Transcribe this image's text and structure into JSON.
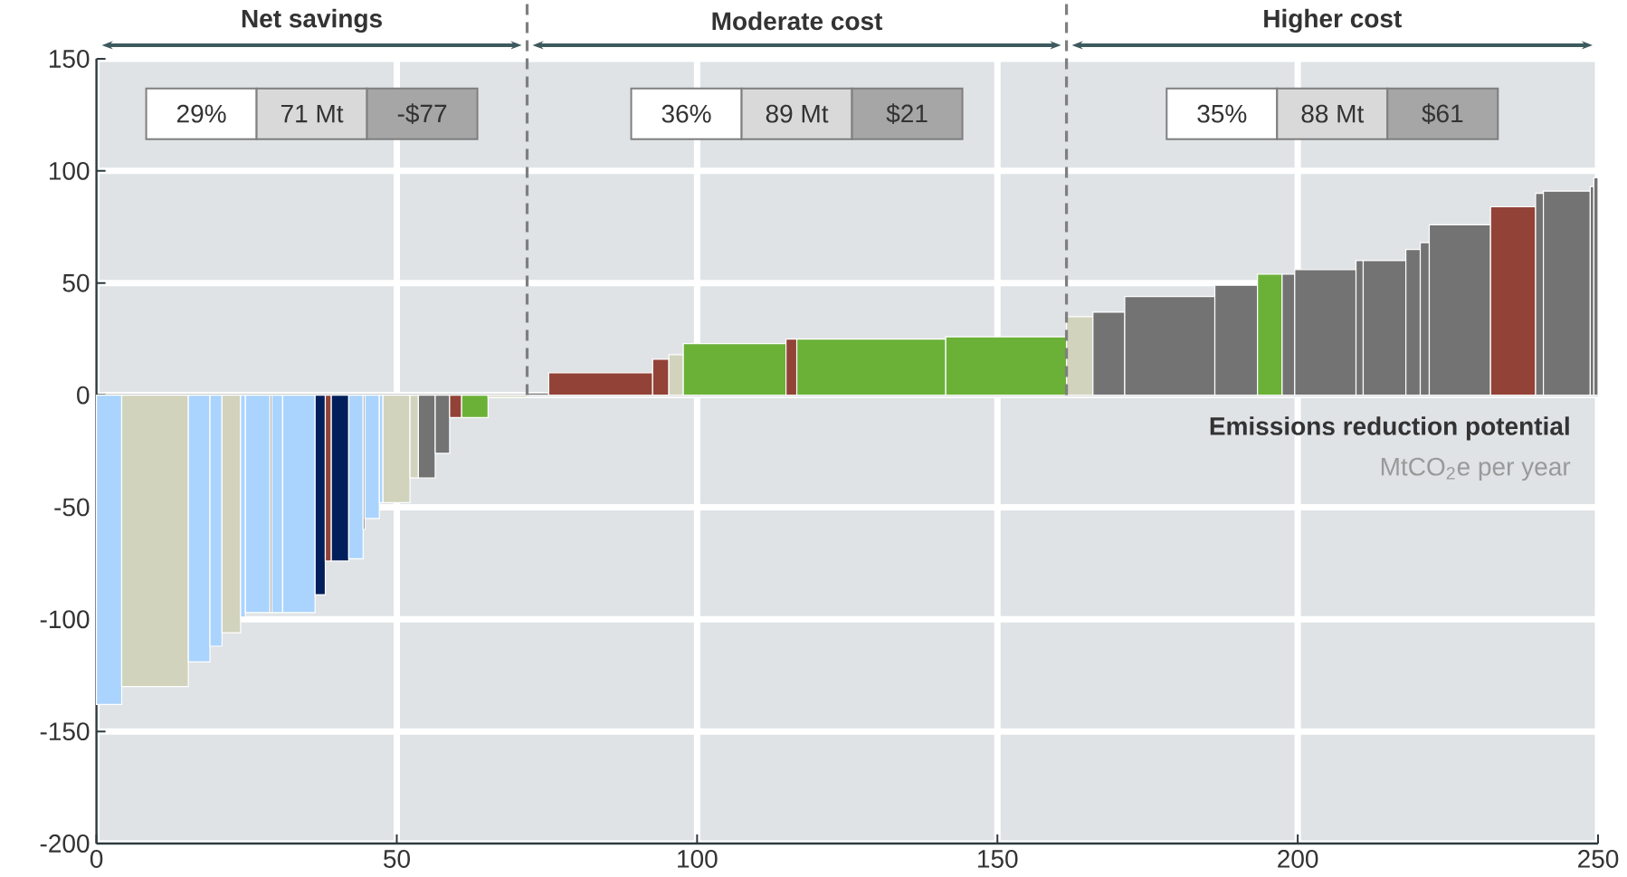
{
  "chart_data": {
    "type": "histogram",
    "bins": [
      0,
      4.2,
      15.3,
      18.9,
      20.9,
      24,
      24.8,
      28.9,
      29.2,
      31,
      36.4,
      38.1,
      39.1,
      42,
      44.4,
      44.7,
      47.1,
      47.7,
      52.2,
      53.6,
      56.4,
      58.8,
      60.8,
      65.2,
      71.7,
      75.3,
      92.6,
      95.3,
      97.7,
      114.8,
      116.6,
      141.4,
      161.5,
      165.9,
      171.2,
      186.2,
      193.3,
      197.4,
      199.5,
      209.7,
      210.9,
      218,
      220.4,
      221.9,
      232.1,
      239.6,
      240.9,
      248.7,
      249.3,
      250
    ],
    "values": [
      -138,
      -130,
      -119,
      -112,
      -106,
      -99,
      -97,
      -97,
      -97,
      -97,
      -89,
      -74,
      -74,
      -73,
      -60,
      -55,
      -48,
      -48,
      -37,
      -37,
      -26,
      -10,
      -10,
      -1,
      1,
      10,
      16,
      18,
      23,
      25,
      25,
      26,
      35,
      37,
      44,
      49,
      54,
      54,
      56,
      60,
      60,
      65,
      68,
      76,
      84,
      90,
      91,
      93,
      97
    ],
    "colors": [
      "#aad4fd",
      "#d2d3bd",
      "#aad4fd",
      "#aad4fd",
      "#d2d3bd",
      "#aad4fd",
      "#aad4fd",
      "#737373",
      "#aad4fd",
      "#aad4fd",
      "#001f5b",
      "#934237",
      "#001f5b",
      "#aad4fd",
      "#737373",
      "#aad4fd",
      "#aad4fd",
      "#d2d3bd",
      "#d2d3bd",
      "#737373",
      "#737373",
      "#934237",
      "#6bb138",
      "#d2d3bd",
      "#737373",
      "#934237",
      "#934237",
      "#d2d3bd",
      "#6bb138",
      "#934237",
      "#6bb138",
      "#6bb138",
      "#d2d3bd",
      "#737373",
      "#737373",
      "#737373",
      "#6bb138",
      "#737373",
      "#737373",
      "#737373",
      "#737373",
      "#737373",
      "#737373",
      "#737373",
      "#934237",
      "#737373",
      "#737373",
      "#737373",
      "#737373"
    ],
    "xlabel": "Emissions reduction potential",
    "xlim": [
      0,
      250
    ],
    "xticks": [
      0,
      50,
      100,
      150,
      200,
      250
    ],
    "ylim": [
      -200,
      150
    ],
    "yticks": [
      -200,
      -150,
      -100,
      -50,
      0,
      50,
      100,
      150
    ],
    "grid": true,
    "ref_lines": [
      {
        "axis": "y",
        "value": 0,
        "color": "#2d3a3f",
        "line_style": "solid"
      },
      {
        "axis": "x",
        "value": 71.7,
        "color": "#7f7f7f",
        "line_style": "dashed"
      },
      {
        "axis": "x",
        "value": 161.5,
        "color": "#7f7f7f",
        "line_style": "dashed"
      }
    ],
    "annotations": [
      "Net savings",
      "Moderate cost",
      "Higher cost",
      "29%",
      "71 Mt",
      "-$77",
      "36%",
      "89 Mt",
      "$21",
      "35%",
      "88 Mt",
      "$61",
      "MtCO$_{2}$e per year"
    ]
  }
}
